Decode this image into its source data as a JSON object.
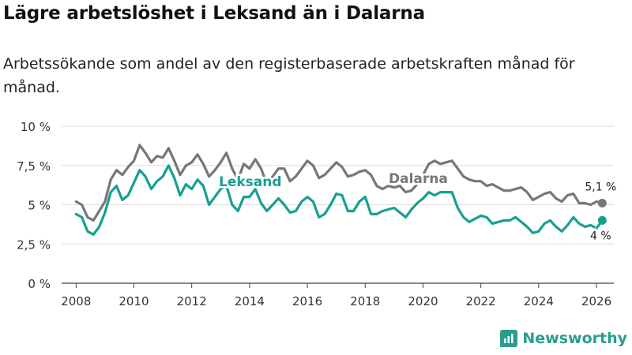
{
  "title": "Lägre arbetslöshet i Leksand än i Dalarna",
  "subtitle": "Arbetssökande som andel av den registerbaserade arbetskraften månad för månad.",
  "brand": "Newsworthy",
  "colors": {
    "leksand": "#17a092",
    "dalarna": "#77767b",
    "grid": "#dddddd",
    "axis": "#444444"
  },
  "chart_data": {
    "type": "line",
    "title": "Lägre arbetslöshet i Leksand än i Dalarna",
    "xlabel": "",
    "ylabel": "",
    "ylim": [
      0,
      10
    ],
    "xlim": [
      2007.5,
      2026.6
    ],
    "y_ticks": [
      {
        "value": 0,
        "label": "0 %"
      },
      {
        "value": 2.5,
        "label": "2,5 %"
      },
      {
        "value": 5,
        "label": "5 %"
      },
      {
        "value": 7.5,
        "label": "7,5 %"
      },
      {
        "value": 10,
        "label": "10 %"
      }
    ],
    "x_ticks": [
      {
        "value": 2008,
        "label": "2008"
      },
      {
        "value": 2010,
        "label": "2010"
      },
      {
        "value": 2012,
        "label": "2012"
      },
      {
        "value": 2014,
        "label": "2014"
      },
      {
        "value": 2016,
        "label": "2016"
      },
      {
        "value": 2018,
        "label": "2018"
      },
      {
        "value": 2020,
        "label": "2020"
      },
      {
        "value": 2022,
        "label": "2022"
      },
      {
        "value": 2024,
        "label": "2024"
      },
      {
        "value": 2026,
        "label": "2026"
      }
    ],
    "series": [
      {
        "name": "Dalarna",
        "color": "#77767b",
        "end_label": "5,1 %",
        "x": [
          2008.0,
          2008.2,
          2008.4,
          2008.6,
          2008.8,
          2009.0,
          2009.2,
          2009.4,
          2009.6,
          2009.8,
          2010.0,
          2010.2,
          2010.4,
          2010.6,
          2010.8,
          2011.0,
          2011.2,
          2011.4,
          2011.6,
          2011.8,
          2012.0,
          2012.2,
          2012.4,
          2012.6,
          2012.8,
          2013.0,
          2013.2,
          2013.4,
          2013.6,
          2013.8,
          2014.0,
          2014.2,
          2014.4,
          2014.6,
          2014.8,
          2015.0,
          2015.2,
          2015.4,
          2015.6,
          2015.8,
          2016.0,
          2016.2,
          2016.4,
          2016.6,
          2016.8,
          2017.0,
          2017.2,
          2017.4,
          2017.6,
          2017.8,
          2018.0,
          2018.2,
          2018.4,
          2018.6,
          2018.8,
          2019.0,
          2019.2,
          2019.4,
          2019.6,
          2019.8,
          2020.0,
          2020.2,
          2020.4,
          2020.6,
          2020.8,
          2021.0,
          2021.2,
          2021.4,
          2021.6,
          2021.8,
          2022.0,
          2022.2,
          2022.4,
          2022.6,
          2022.8,
          2023.0,
          2023.2,
          2023.4,
          2023.6,
          2023.8,
          2024.0,
          2024.2,
          2024.4,
          2024.6,
          2024.8,
          2025.0,
          2025.2,
          2025.4,
          2025.6,
          2025.8,
          2026.0,
          2026.2
        ],
        "values": [
          5.2,
          5.0,
          4.2,
          4.0,
          4.6,
          5.2,
          6.6,
          7.2,
          6.9,
          7.4,
          7.8,
          8.8,
          8.3,
          7.7,
          8.1,
          8.0,
          8.6,
          7.8,
          6.9,
          7.5,
          7.7,
          8.2,
          7.6,
          6.8,
          7.2,
          7.7,
          8.3,
          7.3,
          6.6,
          7.6,
          7.3,
          7.9,
          7.3,
          6.3,
          6.8,
          7.3,
          7.3,
          6.5,
          6.8,
          7.3,
          7.8,
          7.5,
          6.7,
          6.9,
          7.3,
          7.7,
          7.4,
          6.8,
          6.9,
          7.1,
          7.2,
          6.9,
          6.2,
          6.0,
          6.2,
          6.1,
          6.2,
          5.8,
          5.9,
          6.3,
          6.9,
          7.6,
          7.8,
          7.6,
          7.7,
          7.8,
          7.3,
          6.8,
          6.6,
          6.5,
          6.5,
          6.2,
          6.3,
          6.1,
          5.9,
          5.9,
          6.0,
          6.1,
          5.8,
          5.3,
          5.5,
          5.7,
          5.8,
          5.4,
          5.2,
          5.6,
          5.7,
          5.1,
          5.1,
          5.0,
          5.2,
          5.1
        ]
      },
      {
        "name": "Leksand",
        "color": "#17a092",
        "end_label": "4 %",
        "x": [
          2008.0,
          2008.2,
          2008.4,
          2008.6,
          2008.8,
          2009.0,
          2009.2,
          2009.4,
          2009.6,
          2009.8,
          2010.0,
          2010.2,
          2010.4,
          2010.6,
          2010.8,
          2011.0,
          2011.2,
          2011.4,
          2011.6,
          2011.8,
          2012.0,
          2012.2,
          2012.4,
          2012.6,
          2012.8,
          2013.0,
          2013.2,
          2013.4,
          2013.6,
          2013.8,
          2014.0,
          2014.2,
          2014.4,
          2014.6,
          2014.8,
          2015.0,
          2015.2,
          2015.4,
          2015.6,
          2015.8,
          2016.0,
          2016.2,
          2016.4,
          2016.6,
          2016.8,
          2017.0,
          2017.2,
          2017.4,
          2017.6,
          2017.8,
          2018.0,
          2018.2,
          2018.4,
          2018.6,
          2018.8,
          2019.0,
          2019.2,
          2019.4,
          2019.6,
          2019.8,
          2020.0,
          2020.2,
          2020.4,
          2020.6,
          2020.8,
          2021.0,
          2021.2,
          2021.4,
          2021.6,
          2021.8,
          2022.0,
          2022.2,
          2022.4,
          2022.6,
          2022.8,
          2023.0,
          2023.2,
          2023.4,
          2023.6,
          2023.8,
          2024.0,
          2024.2,
          2024.4,
          2024.6,
          2024.8,
          2025.0,
          2025.2,
          2025.4,
          2025.6,
          2025.8,
          2026.0,
          2026.2
        ],
        "values": [
          4.4,
          4.2,
          3.3,
          3.1,
          3.6,
          4.5,
          5.8,
          6.2,
          5.3,
          5.6,
          6.4,
          7.2,
          6.8,
          6.0,
          6.5,
          6.8,
          7.5,
          6.7,
          5.6,
          6.3,
          6.0,
          6.6,
          6.2,
          5.0,
          5.5,
          6.0,
          6.2,
          5.0,
          4.6,
          5.5,
          5.5,
          6.0,
          5.1,
          4.6,
          5.0,
          5.4,
          5.0,
          4.5,
          4.6,
          5.2,
          5.5,
          5.2,
          4.2,
          4.4,
          5.0,
          5.7,
          5.6,
          4.6,
          4.6,
          5.2,
          5.5,
          4.4,
          4.4,
          4.6,
          4.7,
          4.8,
          4.5,
          4.2,
          4.7,
          5.1,
          5.4,
          5.8,
          5.6,
          5.8,
          5.8,
          5.8,
          4.8,
          4.2,
          3.9,
          4.1,
          4.3,
          4.2,
          3.8,
          3.9,
          4.0,
          4.0,
          4.2,
          3.9,
          3.6,
          3.2,
          3.3,
          3.8,
          4.0,
          3.6,
          3.3,
          3.7,
          4.2,
          3.8,
          3.6,
          3.7,
          3.5,
          4.0
        ]
      }
    ]
  }
}
